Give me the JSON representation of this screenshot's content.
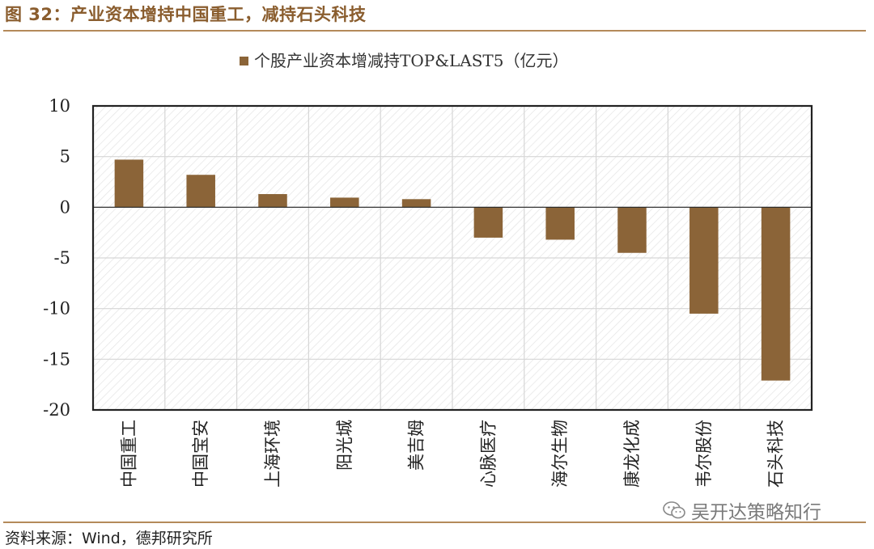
{
  "figure_title": "图 32：产业资本增持中国重工，减持石头科技",
  "source_note": "资料来源：Wind，德邦研究所",
  "watermark": "吴开达策略知行",
  "watermark_icon": "wechat-icon",
  "colors": {
    "bar": "#8b6438",
    "accent": "#8a5d2e",
    "rule": "#b48a5a"
  },
  "chart_data": {
    "type": "bar",
    "title": "个股产业资本增减持TOP&LAST5（亿元）",
    "legend": {
      "position": "top-center",
      "entries": [
        "个股产业资本增减持TOP&LAST5（亿元）"
      ]
    },
    "xlabel": "",
    "ylabel": "",
    "ylim": [
      -20,
      10
    ],
    "yticks": [
      "10",
      "5",
      "0",
      "-5",
      "-10",
      "-15",
      "-20"
    ],
    "ytick_values": [
      10,
      5,
      0,
      -5,
      -10,
      -15,
      -20
    ],
    "grid": true,
    "categories": [
      "中国重工",
      "中国宝安",
      "上海环境",
      "阳光城",
      "美吉姆",
      "心脉医疗",
      "海尔生物",
      "康龙化成",
      "韦尔股份",
      "石头科技"
    ],
    "series": [
      {
        "name": "个股产业资本增减持TOP&LAST5（亿元）",
        "values": [
          4.7,
          3.2,
          1.3,
          0.95,
          0.8,
          -3.0,
          -3.2,
          -4.5,
          -10.5,
          -17.1
        ]
      }
    ]
  }
}
